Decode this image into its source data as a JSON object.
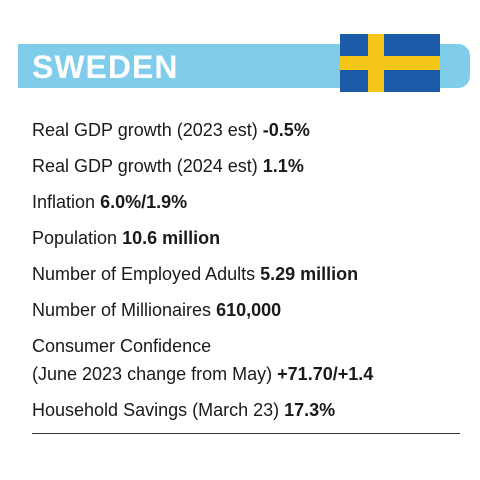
{
  "header": {
    "title": "SWEDEN"
  },
  "items": [
    {
      "label": "Real GDP growth (2023 est)",
      "value": "-0.5%"
    },
    {
      "label": "Real GDP growth (2024 est)",
      "value": "1.1%"
    },
    {
      "label": "Inflation",
      "value": "6.0%/1.9%"
    },
    {
      "label": "Population",
      "value": "10.6 million"
    },
    {
      "label": "Number of Employed Adults",
      "value": "5.29 million"
    },
    {
      "label": "Number of Millionaires",
      "value": "610,000"
    },
    {
      "label": "Consumer Confidence",
      "note": "(June 2023 change from May)",
      "value": "+71.70/+1.4"
    },
    {
      "label": "Household Savings (March 23)",
      "value": "17.3%"
    }
  ]
}
